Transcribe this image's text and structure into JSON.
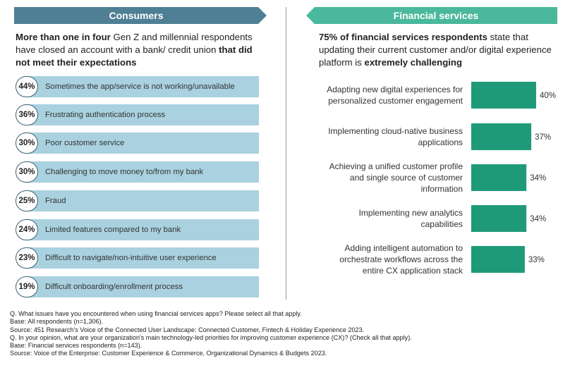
{
  "headers": {
    "left": "Consumers",
    "right": "Financial services"
  },
  "intro_left": {
    "bold1": "More than one in four",
    "text": " Gen Z and millennial respondents have closed an account with a bank/ credit union ",
    "bold2": "that did not meet their expectations"
  },
  "intro_right": {
    "bold1": "75% of financial services respondents",
    "text": " state that updating their current customer and/or digital experience platform is ",
    "bold2": "extremely challenging"
  },
  "consumer_items": [
    {
      "pct": "44%",
      "label": "Sometimes the app/service is not working/unavailable"
    },
    {
      "pct": "36%",
      "label": "Frustrating authentication process"
    },
    {
      "pct": "30%",
      "label": "Poor customer service"
    },
    {
      "pct": "30%",
      "label": "Challenging to move money to/from my bank"
    },
    {
      "pct": "25%",
      "label": "Fraud"
    },
    {
      "pct": "24%",
      "label": "Limited features compared to my bank"
    },
    {
      "pct": "23%",
      "label": "Difficult to navigate/non-intuitive user experience"
    },
    {
      "pct": "19%",
      "label": "Difficult onboarding/enrollment process"
    }
  ],
  "chart_data": {
    "type": "bar",
    "orientation": "horizontal",
    "categories": [
      "Adapting new digital experiences for personalized customer engagement",
      "Implementing cloud-native business applications",
      "Achieving a unified customer profile and single source of customer information",
      "Implementing new analytics capabilities",
      "Adding intelligent automation to orchestrate workflows across the entire CX application stack"
    ],
    "category_lines": [
      [
        "Adapting new digital experiences for",
        "personalized customer engagement"
      ],
      [
        "Implementing cloud-native business",
        "applications"
      ],
      [
        "Achieving a unified customer profile",
        "and single source of customer",
        "information"
      ],
      [
        "Implementing new analytics",
        "capabilities"
      ],
      [
        "Adding intelligent automation to",
        "orchestrate workflows across the",
        "entire CX application stack"
      ]
    ],
    "values": [
      40,
      37,
      34,
      34,
      33
    ],
    "value_labels": [
      "40%",
      "37%",
      "34%",
      "34%",
      "33%"
    ],
    "color": "#1f9a78"
  },
  "notes": [
    "Q. What issues have you encountered when using financial services apps? Please select all that apply.",
    "Base: All respondents (n=1,306).",
    "Source: 451 Research's Voice of the Connected User Landscape: Connected Customer, Fintech & Holiday  Experience 2023.",
    "Q. In your opinion, what are your organization's main technology-led priorities for improving customer experience (CX)? (Check all that apply).",
    "Base: Financial services respondents (n=143).",
    "Source: Voice of the Enterprise: Customer Experience & Commerce, Organizational Dynamics & Budgets 2023."
  ]
}
